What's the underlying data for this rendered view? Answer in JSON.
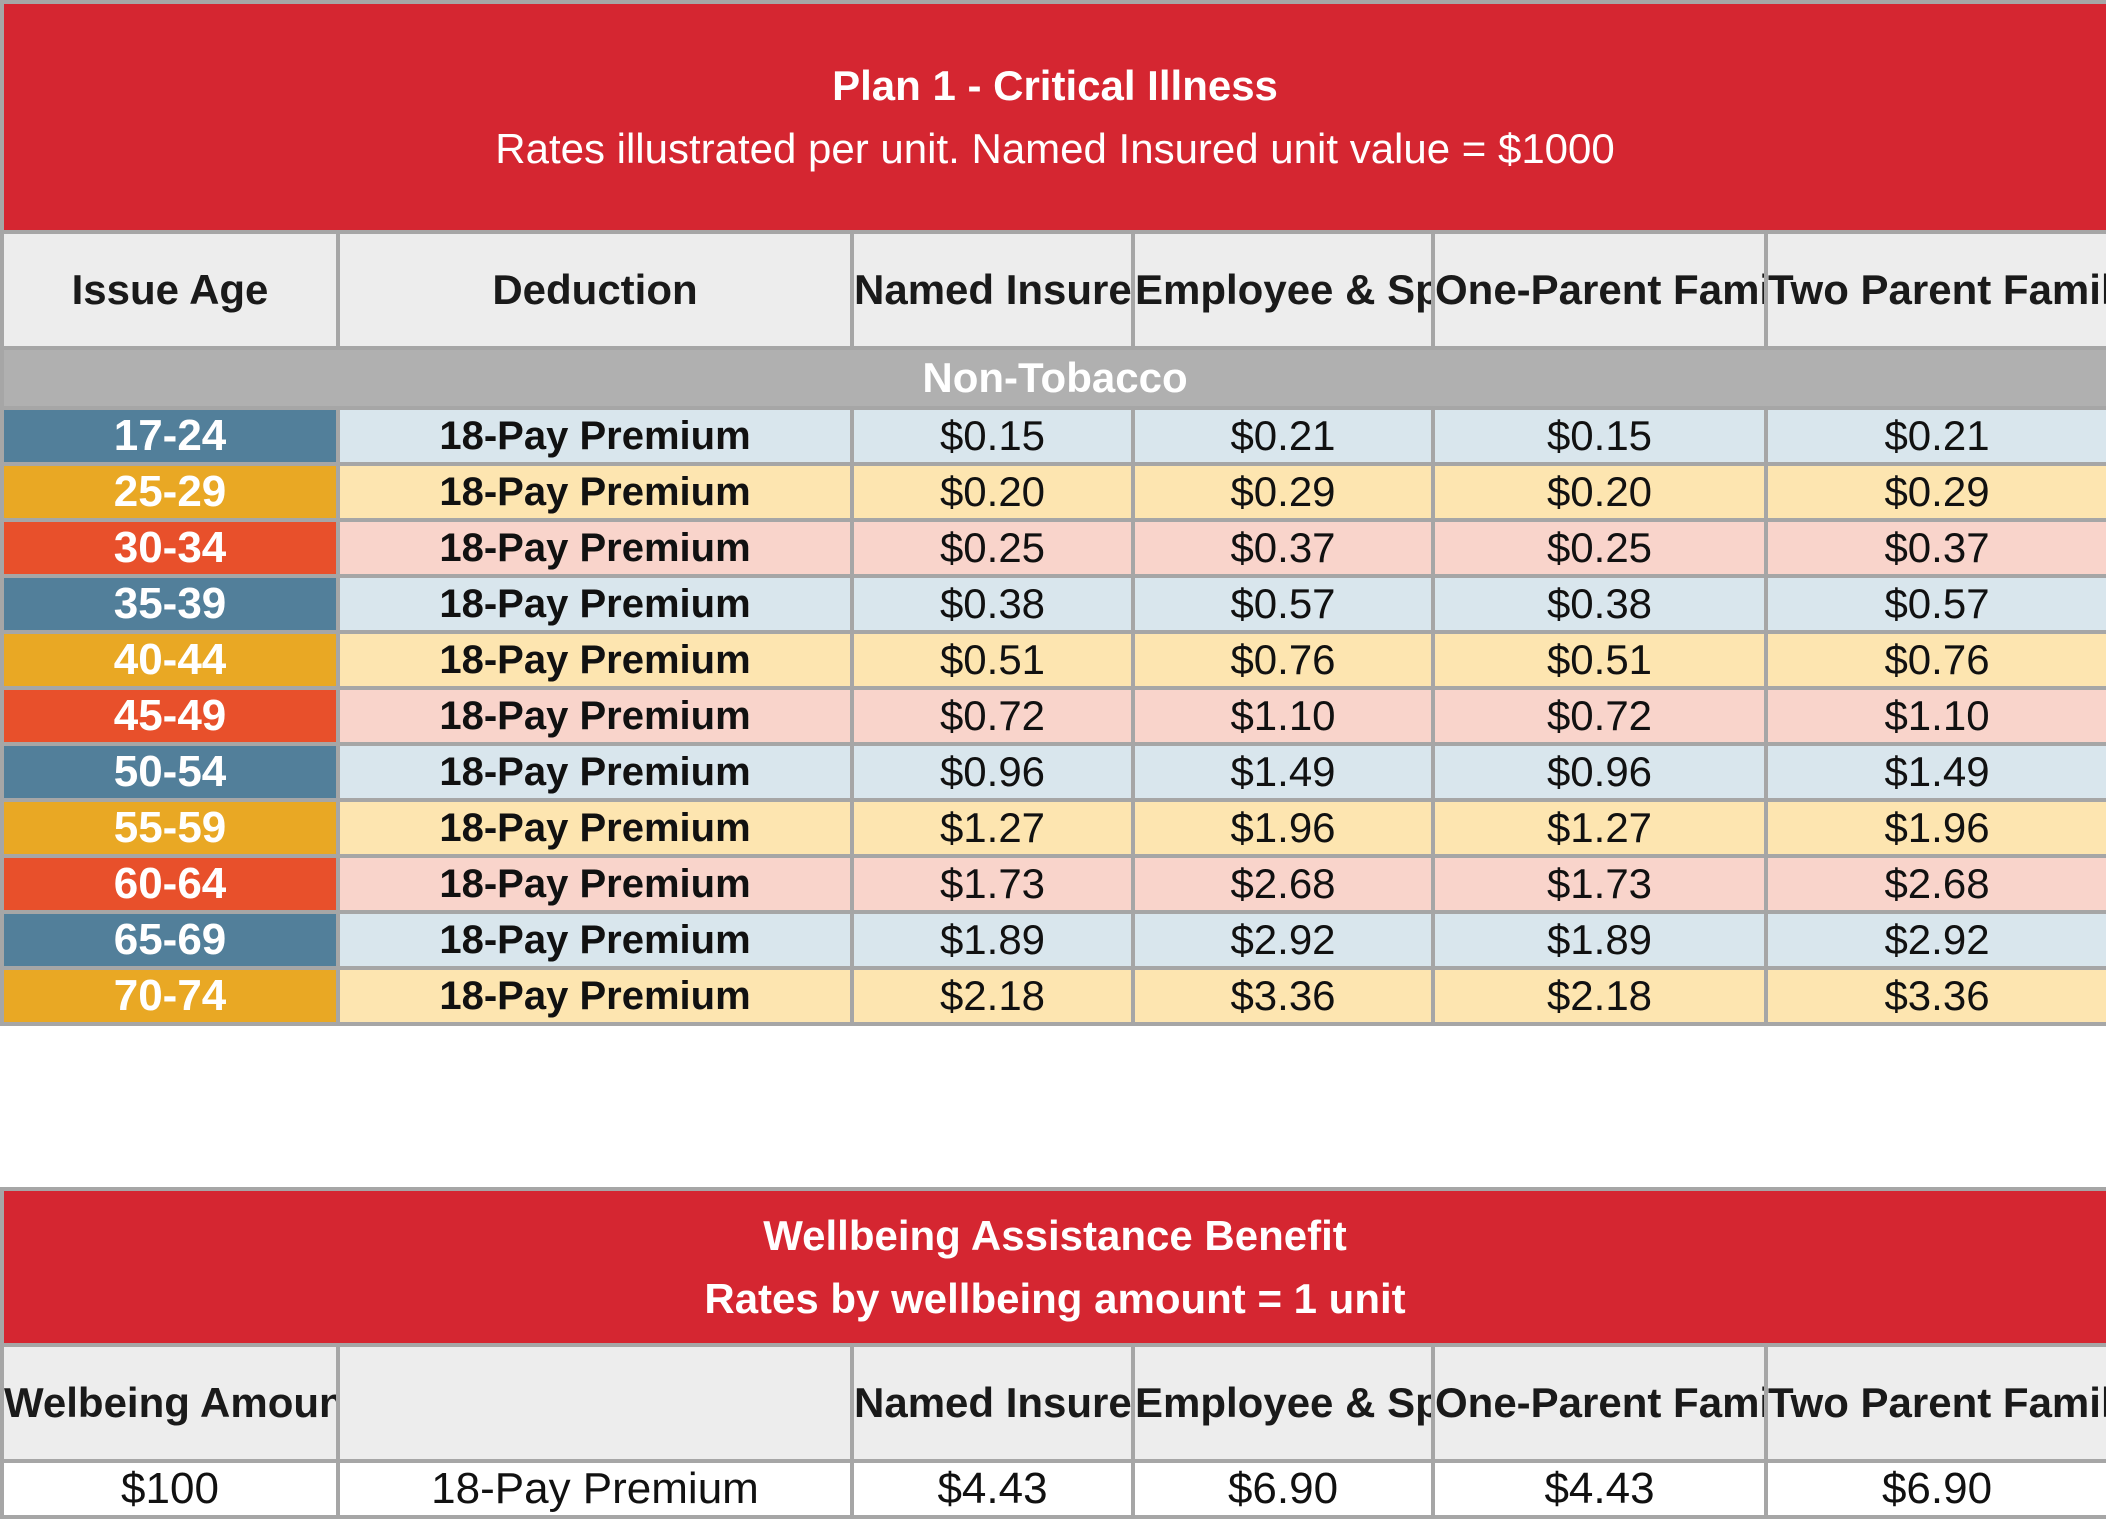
{
  "plan_table": {
    "title": "Plan 1 - Critical Illness",
    "subtitle": "Rates illustrated per unit. Named Insured unit value = $1000",
    "headers": [
      "Issue Age",
      "Deduction",
      "Named Insured",
      "Employee & Spouse",
      "One-Parent Family",
      "Two Parent Family"
    ],
    "section_label": "Non-Tobacco",
    "row_colors": {
      "blue": "#527f9a",
      "gold": "#e9a824",
      "red": "#e8502b"
    },
    "rows": [
      {
        "age": "17-24",
        "deduction": "18-Pay Premium",
        "named_insured": "$0.15",
        "employee_spouse": "$0.21",
        "one_parent": "$0.15",
        "two_parent": "$0.21",
        "color": "blue"
      },
      {
        "age": "25-29",
        "deduction": "18-Pay Premium",
        "named_insured": "$0.20",
        "employee_spouse": "$0.29",
        "one_parent": "$0.20",
        "two_parent": "$0.29",
        "color": "gold"
      },
      {
        "age": "30-34",
        "deduction": "18-Pay Premium",
        "named_insured": "$0.25",
        "employee_spouse": "$0.37",
        "one_parent": "$0.25",
        "two_parent": "$0.37",
        "color": "red"
      },
      {
        "age": "35-39",
        "deduction": "18-Pay Premium",
        "named_insured": "$0.38",
        "employee_spouse": "$0.57",
        "one_parent": "$0.38",
        "two_parent": "$0.57",
        "color": "blue"
      },
      {
        "age": "40-44",
        "deduction": "18-Pay Premium",
        "named_insured": "$0.51",
        "employee_spouse": "$0.76",
        "one_parent": "$0.51",
        "two_parent": "$0.76",
        "color": "gold"
      },
      {
        "age": "45-49",
        "deduction": "18-Pay Premium",
        "named_insured": "$0.72",
        "employee_spouse": "$1.10",
        "one_parent": "$0.72",
        "two_parent": "$1.10",
        "color": "red"
      },
      {
        "age": "50-54",
        "deduction": "18-Pay Premium",
        "named_insured": "$0.96",
        "employee_spouse": "$1.49",
        "one_parent": "$0.96",
        "two_parent": "$1.49",
        "color": "blue"
      },
      {
        "age": "55-59",
        "deduction": "18-Pay Premium",
        "named_insured": "$1.27",
        "employee_spouse": "$1.96",
        "one_parent": "$1.27",
        "two_parent": "$1.96",
        "color": "gold"
      },
      {
        "age": "60-64",
        "deduction": "18-Pay Premium",
        "named_insured": "$1.73",
        "employee_spouse": "$2.68",
        "one_parent": "$1.73",
        "two_parent": "$2.68",
        "color": "red"
      },
      {
        "age": "65-69",
        "deduction": "18-Pay Premium",
        "named_insured": "$1.89",
        "employee_spouse": "$2.92",
        "one_parent": "$1.89",
        "two_parent": "$2.92",
        "color": "blue"
      },
      {
        "age": "70-74",
        "deduction": "18-Pay Premium",
        "named_insured": "$2.18",
        "employee_spouse": "$3.36",
        "one_parent": "$2.18",
        "two_parent": "$3.36",
        "color": "gold"
      }
    ]
  },
  "wellbeing_table": {
    "title": "Wellbeing Assistance Benefit",
    "subtitle": "Rates by wellbeing amount = 1 unit",
    "headers": [
      "Welbeing Amount",
      "",
      "Named Insured",
      "Employee & Spouse",
      "One-Parent Family",
      "Two Parent Family"
    ],
    "rows": [
      {
        "amount": "$100",
        "deduction": "18-Pay Premium",
        "named_insured": "$4.43",
        "employee_spouse": "$6.90",
        "one_parent": "$4.43",
        "two_parent": "$6.90"
      }
    ]
  },
  "colors": {
    "title_red": "#d52631",
    "header_gray": "#ededed",
    "section_gray": "#b0b0b0",
    "border_gray": "#a6a6a6"
  }
}
